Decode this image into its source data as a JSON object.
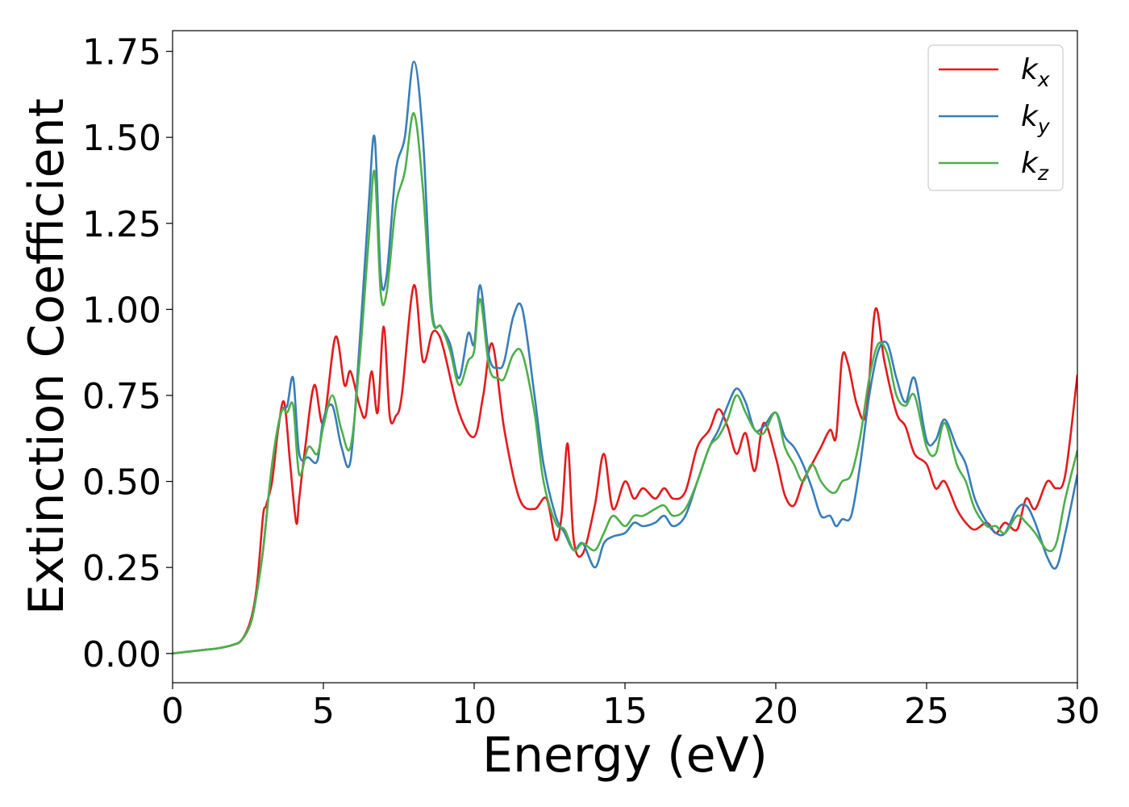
{
  "chart_data": {
    "type": "line",
    "title": "",
    "xlabel": "Energy (eV)",
    "ylabel": "Extinction Coefficient",
    "xlim": [
      0,
      30
    ],
    "ylim": [
      -0.085,
      1.81
    ],
    "xticks": [
      0,
      5,
      10,
      15,
      20,
      25,
      30
    ],
    "xtick_labels": [
      "0",
      "5",
      "10",
      "15",
      "20",
      "25",
      "30"
    ],
    "yticks": [
      0.0,
      0.25,
      0.5,
      0.75,
      1.0,
      1.25,
      1.5,
      1.75
    ],
    "ytick_labels": [
      "0.00",
      "0.25",
      "0.50",
      "0.75",
      "1.00",
      "1.25",
      "1.50",
      "1.75"
    ],
    "grid": false,
    "legend_position": "top-right",
    "series": [
      {
        "name": "k_x",
        "legend_base": "k",
        "legend_sub": "x",
        "color": "#e41a1c",
        "x": [
          0,
          1,
          1.5,
          2,
          2.3,
          2.6,
          2.8,
          3.0,
          3.1,
          3.3,
          3.5,
          3.7,
          3.9,
          4.1,
          4.2,
          4.4,
          4.7,
          5.0,
          5.4,
          5.7,
          5.9,
          6.2,
          6.4,
          6.6,
          6.8,
          7.0,
          7.2,
          7.4,
          7.6,
          8.0,
          8.3,
          8.6,
          8.8,
          9.0,
          9.5,
          10.0,
          10.3,
          10.6,
          11.0,
          11.5,
          12.0,
          12.4,
          12.7,
          12.9,
          13.1,
          13.3,
          13.6,
          14.0,
          14.3,
          14.6,
          15.0,
          15.3,
          15.6,
          16.0,
          16.3,
          16.6,
          17.0,
          17.4,
          17.8,
          18.1,
          18.4,
          18.7,
          19.0,
          19.3,
          19.6,
          20.0,
          20.3,
          20.6,
          20.9,
          21.2,
          21.5,
          21.8,
          22.0,
          22.2,
          22.4,
          22.7,
          23.0,
          23.3,
          23.6,
          24.0,
          24.3,
          24.6,
          25.0,
          25.3,
          25.6,
          26.0,
          26.3,
          26.6,
          27.0,
          27.3,
          27.6,
          28.0,
          28.3,
          28.6,
          29.0,
          29.3,
          29.6,
          30.0
        ],
        "y": [
          0.0,
          0.01,
          0.015,
          0.025,
          0.04,
          0.1,
          0.2,
          0.4,
          0.43,
          0.5,
          0.65,
          0.73,
          0.55,
          0.38,
          0.45,
          0.6,
          0.78,
          0.67,
          0.92,
          0.78,
          0.82,
          0.72,
          0.69,
          0.82,
          0.7,
          0.95,
          0.69,
          0.69,
          0.75,
          1.07,
          0.85,
          0.93,
          0.93,
          0.88,
          0.7,
          0.63,
          0.75,
          0.9,
          0.65,
          0.45,
          0.42,
          0.45,
          0.33,
          0.4,
          0.61,
          0.33,
          0.29,
          0.43,
          0.58,
          0.42,
          0.5,
          0.45,
          0.48,
          0.45,
          0.48,
          0.45,
          0.47,
          0.6,
          0.65,
          0.71,
          0.66,
          0.58,
          0.64,
          0.53,
          0.67,
          0.57,
          0.46,
          0.43,
          0.5,
          0.55,
          0.6,
          0.65,
          0.63,
          0.86,
          0.84,
          0.72,
          0.7,
          1.0,
          0.85,
          0.7,
          0.66,
          0.58,
          0.55,
          0.48,
          0.5,
          0.42,
          0.38,
          0.36,
          0.38,
          0.35,
          0.38,
          0.36,
          0.45,
          0.42,
          0.5,
          0.48,
          0.52,
          0.81
        ]
      },
      {
        "name": "k_y",
        "legend_base": "k",
        "legend_sub": "y",
        "color": "#377eb8",
        "x": [
          0,
          1,
          1.5,
          2,
          2.3,
          2.6,
          2.8,
          3.0,
          3.3,
          3.6,
          3.8,
          4.0,
          4.2,
          4.5,
          4.8,
          5.0,
          5.3,
          5.6,
          5.9,
          6.2,
          6.5,
          6.7,
          6.9,
          7.1,
          7.4,
          7.7,
          8.0,
          8.3,
          8.6,
          8.9,
          9.2,
          9.5,
          9.8,
          10.0,
          10.2,
          10.5,
          10.8,
          11.0,
          11.3,
          11.6,
          12.0,
          12.3,
          12.7,
          13.0,
          13.3,
          13.6,
          14.0,
          14.3,
          14.6,
          15.0,
          15.3,
          15.6,
          16.0,
          16.3,
          16.6,
          17.0,
          17.4,
          17.8,
          18.1,
          18.4,
          18.7,
          19.0,
          19.3,
          19.6,
          20.0,
          20.3,
          20.6,
          20.9,
          21.2,
          21.5,
          21.8,
          22.0,
          22.2,
          22.5,
          22.8,
          23.1,
          23.4,
          23.7,
          24.0,
          24.3,
          24.6,
          25.0,
          25.3,
          25.6,
          26.0,
          26.3,
          26.6,
          27.0,
          27.3,
          27.6,
          28.0,
          28.3,
          28.6,
          29.0,
          29.3,
          29.6,
          30.0
        ],
        "y": [
          0.0,
          0.01,
          0.015,
          0.025,
          0.04,
          0.09,
          0.18,
          0.3,
          0.55,
          0.7,
          0.72,
          0.8,
          0.58,
          0.57,
          0.56,
          0.68,
          0.72,
          0.6,
          0.56,
          0.9,
          1.3,
          1.5,
          1.1,
          1.1,
          1.4,
          1.5,
          1.72,
          1.5,
          1.0,
          0.95,
          0.9,
          0.8,
          0.93,
          0.9,
          1.07,
          0.86,
          0.83,
          0.85,
          0.98,
          1.0,
          0.75,
          0.55,
          0.4,
          0.35,
          0.3,
          0.32,
          0.25,
          0.32,
          0.34,
          0.35,
          0.38,
          0.37,
          0.38,
          0.4,
          0.37,
          0.4,
          0.5,
          0.6,
          0.65,
          0.72,
          0.77,
          0.73,
          0.65,
          0.66,
          0.7,
          0.63,
          0.6,
          0.55,
          0.48,
          0.4,
          0.4,
          0.37,
          0.39,
          0.4,
          0.55,
          0.75,
          0.88,
          0.9,
          0.8,
          0.73,
          0.8,
          0.62,
          0.62,
          0.68,
          0.6,
          0.55,
          0.45,
          0.38,
          0.35,
          0.35,
          0.42,
          0.43,
          0.38,
          0.28,
          0.25,
          0.35,
          0.52
        ]
      },
      {
        "name": "k_z",
        "legend_base": "k",
        "legend_sub": "z",
        "color": "#4daf4a",
        "x": [
          0,
          1,
          1.5,
          2,
          2.3,
          2.6,
          2.8,
          3.0,
          3.3,
          3.6,
          3.8,
          4.0,
          4.2,
          4.5,
          4.8,
          5.0,
          5.3,
          5.6,
          5.9,
          6.2,
          6.5,
          6.7,
          6.9,
          7.1,
          7.4,
          7.7,
          8.0,
          8.3,
          8.6,
          8.9,
          9.2,
          9.5,
          9.8,
          10.0,
          10.2,
          10.5,
          10.8,
          11.0,
          11.3,
          11.6,
          12.0,
          12.3,
          12.7,
          13.0,
          13.3,
          13.6,
          14.0,
          14.3,
          14.6,
          15.0,
          15.3,
          15.6,
          16.0,
          16.3,
          16.6,
          17.0,
          17.4,
          17.8,
          18.1,
          18.4,
          18.7,
          19.0,
          19.3,
          19.6,
          20.0,
          20.3,
          20.6,
          20.9,
          21.2,
          21.5,
          21.8,
          22.0,
          22.2,
          22.5,
          22.8,
          23.1,
          23.4,
          23.7,
          24.0,
          24.3,
          24.6,
          25.0,
          25.3,
          25.6,
          26.0,
          26.3,
          26.6,
          27.0,
          27.3,
          27.6,
          28.0,
          28.3,
          28.6,
          29.0,
          29.3,
          29.6,
          30.0
        ],
        "y": [
          0.0,
          0.01,
          0.015,
          0.025,
          0.04,
          0.09,
          0.18,
          0.3,
          0.55,
          0.7,
          0.7,
          0.72,
          0.52,
          0.6,
          0.58,
          0.66,
          0.75,
          0.65,
          0.6,
          0.85,
          1.2,
          1.4,
          1.05,
          1.05,
          1.3,
          1.4,
          1.57,
          1.35,
          0.98,
          0.95,
          0.88,
          0.78,
          0.85,
          0.88,
          1.03,
          0.83,
          0.8,
          0.8,
          0.87,
          0.87,
          0.7,
          0.5,
          0.38,
          0.36,
          0.3,
          0.32,
          0.3,
          0.35,
          0.4,
          0.37,
          0.4,
          0.4,
          0.42,
          0.43,
          0.4,
          0.42,
          0.5,
          0.6,
          0.63,
          0.68,
          0.75,
          0.7,
          0.65,
          0.64,
          0.7,
          0.6,
          0.55,
          0.5,
          0.55,
          0.5,
          0.47,
          0.47,
          0.5,
          0.52,
          0.63,
          0.8,
          0.9,
          0.87,
          0.75,
          0.72,
          0.75,
          0.6,
          0.58,
          0.67,
          0.55,
          0.5,
          0.42,
          0.37,
          0.37,
          0.35,
          0.4,
          0.38,
          0.35,
          0.3,
          0.32,
          0.45,
          0.59
        ]
      }
    ]
  }
}
